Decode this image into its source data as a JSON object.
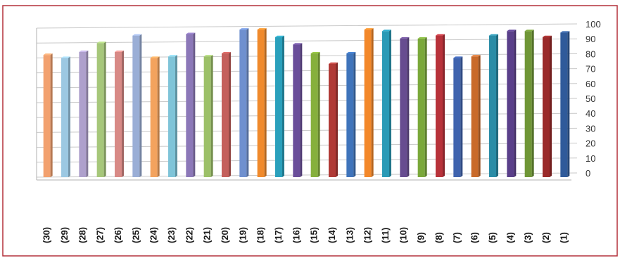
{
  "chart_data": {
    "type": "bar",
    "title": "",
    "xlabel": "",
    "ylabel": "",
    "ylim": [
      0,
      100
    ],
    "yticks": [
      0,
      10,
      20,
      30,
      40,
      50,
      60,
      70,
      80,
      90,
      100
    ],
    "y_axis_side": "right",
    "grid": true,
    "legend": "none",
    "categories": [
      "(30)",
      "(29)",
      "(28)",
      "(27)",
      "(26)",
      "(25)",
      "(24)",
      "(23)",
      "(22)",
      "(21)",
      "(20)",
      "(19)",
      "(18)",
      "(17)",
      "(16)",
      "(15)",
      "(14)",
      "(13)",
      "(12)",
      "(11)",
      "(10)",
      "(9)",
      "(8)",
      "(7)",
      "(6)",
      "(5)",
      "(4)",
      "(3)",
      "(2)",
      "(1)"
    ],
    "values": [
      82,
      80,
      84,
      90,
      84,
      95,
      80,
      81,
      96,
      81,
      83,
      99,
      99,
      94,
      89,
      83,
      76,
      83,
      99,
      98,
      93,
      93,
      95,
      80,
      81,
      95,
      98,
      98,
      94,
      97
    ],
    "bar_colors": [
      "#f2a16f",
      "#9cc8e2",
      "#aea0cc",
      "#a6c77a",
      "#d88a86",
      "#9aaed6",
      "#f3a35e",
      "#7fc4d8",
      "#8c78b8",
      "#9cc068",
      "#c4605c",
      "#6f90cf",
      "#f08a2c",
      "#2aa0bc",
      "#6a4e9a",
      "#86b03c",
      "#b03a36",
      "#3f74bb",
      "#f3882a",
      "#2a9ab6",
      "#674c90",
      "#7aa83a",
      "#b8323a",
      "#3f63ae",
      "#c96a2a",
      "#2a8ca6",
      "#5a3f8a",
      "#6f9636",
      "#9a2a2a",
      "#2f5a9a"
    ]
  }
}
